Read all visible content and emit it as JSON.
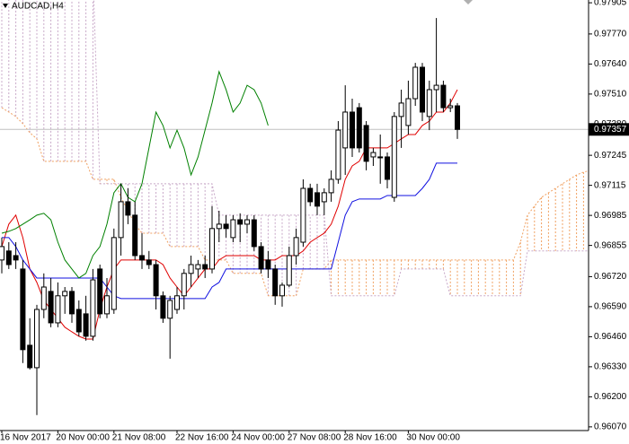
{
  "chart_data": {
    "type": "candlestick",
    "title": "AUDCAD,H4",
    "current_price": 0.97357,
    "categories": [
      "16 Nov 2017",
      null,
      null,
      null,
      null,
      null,
      null,
      null,
      "20 Nov 00:00",
      null,
      null,
      null,
      null,
      null,
      null,
      null,
      "21 Nov 08:00",
      null,
      null,
      null,
      null,
      null,
      null,
      null,
      null,
      "22 Nov 16:00",
      null,
      null,
      null,
      null,
      null,
      null,
      null,
      "24 Nov 00:00",
      null,
      null,
      null,
      null,
      null,
      null,
      null,
      "27 Nov 08:00",
      null,
      null,
      null,
      null,
      null,
      null,
      null,
      "28 Nov 16:00",
      null,
      null,
      null,
      null,
      null,
      null,
      null,
      null,
      "30 Nov 00:00",
      null,
      null,
      null,
      null,
      null,
      null,
      null
    ],
    "open": [
      0.96792,
      0.96831,
      0.96811,
      0.96753,
      0.96423,
      0.96326,
      0.96578,
      0.96656,
      0.9652,
      0.96637,
      0.96656,
      0.96578,
      0.96559,
      0.96462,
      0.96753,
      0.96559,
      0.96578,
      0.96889,
      0.97044,
      0.96986,
      0.96811,
      0.96792,
      0.96772,
      0.96637,
      0.9654,
      0.96578,
      0.96637,
      0.96734,
      0.96753,
      0.96772,
      0.96753,
      0.96928,
      0.96947,
      0.96889,
      0.96966,
      0.96947,
      0.96966,
      0.9685,
      0.96792,
      0.96753,
      0.96637,
      0.96683,
      0.96811,
      0.96869,
      0.97102,
      0.97083,
      0.97044,
      0.97083,
      0.97141,
      0.97277,
      0.97432,
      0.97451,
      0.97374,
      0.97238,
      0.97238,
      0.97238,
      0.97063,
      0.97413,
      0.97374,
      0.9749,
      0.97626,
      0.97413,
      0.97529,
      0.97548,
      0.97451,
      0.97459
    ],
    "high": [
      0.96889,
      0.96869,
      0.96869,
      0.96792,
      0.9654,
      0.96598,
      0.96734,
      0.96714,
      0.96695,
      0.96675,
      0.96675,
      0.96617,
      0.96637,
      0.96753,
      0.96772,
      0.96714,
      0.96928,
      0.97122,
      0.97102,
      0.97044,
      0.96908,
      0.96831,
      0.96792,
      0.96656,
      0.96637,
      0.96675,
      0.96753,
      0.96811,
      0.96792,
      0.96811,
      0.97025,
      0.97005,
      0.96986,
      0.96986,
      0.96994,
      0.96986,
      0.96986,
      0.96869,
      0.96831,
      0.96772,
      0.96695,
      0.9685,
      0.96928,
      0.97141,
      0.97122,
      0.97122,
      0.97102,
      0.9718,
      0.97393,
      0.97548,
      0.9749,
      0.97471,
      0.97393,
      0.97277,
      0.97335,
      0.97257,
      0.97432,
      0.97529,
      0.97568,
      0.97645,
      0.97645,
      0.97568,
      0.97839,
      0.97568,
      0.9749,
      0.97471
    ],
    "low": [
      0.96734,
      0.96753,
      0.96753,
      0.96346,
      0.96318,
      0.96121,
      0.9654,
      0.96501,
      0.96501,
      0.96559,
      0.9652,
      0.96462,
      0.96443,
      0.96443,
      0.9654,
      0.9654,
      0.96559,
      0.96811,
      0.96947,
      0.96792,
      0.96753,
      0.96753,
      0.96578,
      0.9652,
      0.96365,
      0.96559,
      0.96578,
      0.96675,
      0.96714,
      0.96714,
      0.96734,
      0.96869,
      0.96889,
      0.96869,
      0.96869,
      0.96908,
      0.96831,
      0.96734,
      0.96714,
      0.96598,
      0.9659,
      0.96675,
      0.96772,
      0.9685,
      0.97025,
      0.96986,
      0.96986,
      0.97044,
      0.97122,
      0.9716,
      0.97238,
      0.97257,
      0.9718,
      0.97199,
      0.97122,
      0.97102,
      0.97044,
      0.97277,
      0.97335,
      0.97459,
      0.97393,
      0.97354,
      0.97432,
      0.97432,
      0.97432,
      0.97316
    ],
    "close": [
      0.9685,
      0.96772,
      0.96792,
      0.96404,
      0.96326,
      0.96578,
      0.96675,
      0.9652,
      0.96637,
      0.96656,
      0.96559,
      0.96481,
      0.96462,
      0.96706,
      0.96559,
      0.96637,
      0.96889,
      0.97044,
      0.96986,
      0.96811,
      0.96792,
      0.96772,
      0.96637,
      0.9654,
      0.96617,
      0.96637,
      0.96734,
      0.96772,
      0.96772,
      0.96753,
      0.96928,
      0.96947,
      0.96928,
      0.96966,
      0.96947,
      0.96966,
      0.9685,
      0.96753,
      0.96753,
      0.96637,
      0.96683,
      0.96811,
      0.96889,
      0.97102,
      0.97044,
      0.97025,
      0.97083,
      0.97141,
      0.97354,
      0.97432,
      0.97277,
      0.97277,
      0.97219,
      0.97257,
      0.97238,
      0.97141,
      0.97413,
      0.97471,
      0.9749,
      0.97626,
      0.97432,
      0.97529,
      0.97548,
      0.97451,
      0.97459,
      0.97357
    ],
    "up_color": "#ffffff",
    "down_color": "#000000",
    "lines": [
      {
        "color": "#e00000",
        "values": [
          0.9685,
          0.96947,
          0.96986,
          0.96889,
          0.96753,
          0.96695,
          0.96617,
          0.96578,
          0.9654,
          0.96501,
          0.96481,
          0.96462,
          0.9645,
          0.9645,
          0.96578,
          0.96675,
          0.96753,
          0.96792,
          0.96792,
          0.96792,
          0.96792,
          0.96792,
          0.96792,
          0.96772,
          0.96714,
          0.96675,
          0.96637,
          0.96675,
          0.96714,
          0.96753,
          0.96753,
          0.96792,
          0.96811,
          0.96811,
          0.96811,
          0.96811,
          0.96811,
          0.96792,
          0.96792,
          0.96792,
          0.96811,
          0.96811,
          0.96811,
          0.96831,
          0.96869,
          0.96889,
          0.96908,
          0.96947,
          0.97025,
          0.97141,
          0.97199,
          0.97219,
          0.97277,
          0.97277,
          0.97277,
          0.97277,
          0.97296,
          0.97316,
          0.97335,
          0.97335,
          0.97374,
          0.97393,
          0.97432,
          0.97432,
          0.97471,
          0.97529
        ]
      },
      {
        "color": "#1010e0",
        "values": [
          0.96889,
          0.96889,
          0.9685,
          0.96792,
          0.96753,
          0.96714,
          0.96714,
          0.96714,
          0.96714,
          0.96714,
          0.96714,
          0.96714,
          0.96714,
          0.96714,
          0.96714,
          0.96675,
          0.96637,
          0.96625,
          0.96625,
          0.96625,
          0.96625,
          0.96625,
          0.96625,
          0.96625,
          0.96625,
          0.96625,
          0.96625,
          0.96625,
          0.96625,
          0.96625,
          0.96675,
          0.96695,
          0.96753,
          0.96753,
          0.96753,
          0.96753,
          0.96753,
          0.96753,
          0.96753,
          0.96753,
          0.96753,
          0.96753,
          0.96753,
          0.96753,
          0.96753,
          0.96753,
          0.96753,
          0.96753,
          0.96869,
          0.96986,
          0.97044,
          0.97056,
          0.97056,
          0.97056,
          0.97056,
          0.97071,
          0.97071,
          0.97071,
          0.97071,
          0.97071,
          0.97102,
          0.97141,
          0.97211,
          0.97211,
          0.97211,
          0.97211
        ]
      },
      {
        "color": "#008000",
        "values": [
          0.96908,
          0.96916,
          0.96928,
          0.96947,
          0.96966,
          0.96986,
          0.96994,
          0.96966,
          0.96869,
          0.96792,
          0.96753,
          0.96714,
          0.96734,
          0.96811,
          0.9685,
          0.96947,
          0.97083,
          0.97122,
          0.97063,
          0.97044,
          0.97122,
          0.97277,
          0.97432,
          0.97374,
          0.97277,
          0.97354,
          0.97277,
          0.9716,
          0.97238,
          0.97354,
          0.97471,
          0.97607,
          0.97529,
          0.97432,
          0.97471,
          0.97548,
          0.97529,
          0.97471,
          0.97374
        ]
      }
    ],
    "cloud": {
      "bull_color": "#f0a060",
      "bear_color": "#c8a8c8",
      "span_a": [
        0.97451,
        0.97432,
        0.97413,
        0.97382,
        0.97343,
        0.97316,
        0.97219,
        0.97219,
        0.97219,
        0.97219,
        0.97219,
        0.97219,
        0.97219,
        0.97141,
        0.97141,
        0.97141,
        0.97141,
        0.97063,
        0.97005,
        0.96947,
        0.96908,
        0.96908,
        0.96908,
        0.96908,
        0.9685,
        0.9685,
        0.9685,
        0.9685,
        0.9685,
        0.96792,
        0.96792,
        0.96792,
        0.96792,
        0.96734,
        0.96734,
        0.96734,
        0.96734,
        0.96734,
        0.96637,
        0.96637,
        0.96637,
        0.96637,
        0.96637,
        0.96753,
        0.96753,
        0.96753,
        0.96753,
        0.96792,
        0.96792,
        0.96792,
        0.96792,
        0.96792,
        0.96792,
        0.96792,
        0.96792,
        0.96792,
        0.96792,
        0.96792,
        0.96792,
        0.96792,
        0.96792,
        0.96792,
        0.96792,
        0.96792,
        0.96792,
        0.96792,
        0.96792,
        0.96792,
        0.96792,
        0.96792,
        0.96792,
        0.96792,
        0.96792,
        0.96792,
        0.96869,
        0.96986,
        0.97025,
        0.97063,
        0.97083,
        0.97102,
        0.97122,
        0.97141,
        0.9716,
        0.97172,
        0.9718
      ],
      "span_b": [
        0.98033,
        0.98033,
        0.98033,
        0.98033,
        0.98033,
        0.98033,
        0.98033,
        0.98033,
        0.98033,
        0.98033,
        0.98033,
        0.98033,
        0.98033,
        0.98033,
        0.97122,
        0.97122,
        0.97122,
        0.97122,
        0.97122,
        0.97122,
        0.97122,
        0.97122,
        0.97122,
        0.97122,
        0.97122,
        0.97122,
        0.97122,
        0.97122,
        0.97122,
        0.97122,
        0.97122,
        0.96986,
        0.96986,
        0.96986,
        0.96986,
        0.96986,
        0.96986,
        0.96986,
        0.96986,
        0.96986,
        0.96986,
        0.96986,
        0.96986,
        0.96986,
        0.96986,
        0.96986,
        0.96986,
        0.96637,
        0.96637,
        0.96637,
        0.96637,
        0.96637,
        0.96637,
        0.96637,
        0.96637,
        0.96637,
        0.96637,
        0.96753,
        0.96753,
        0.96753,
        0.96753,
        0.96753,
        0.96753,
        0.96753,
        0.96637,
        0.96637,
        0.96637,
        0.96637,
        0.96637,
        0.96637,
        0.96637,
        0.96637,
        0.96637,
        0.96637,
        0.96637,
        0.96831,
        0.96831,
        0.96831,
        0.96831,
        0.96831,
        0.96831,
        0.96831,
        0.96831,
        0.96831,
        0.96831
      ]
    },
    "ylim": [
      0.96054,
      0.97917
    ],
    "yticks": [
      0.97905,
      {
        "value": 0.9777,
        "label": "0.97770"
      },
      {
        "value": 0.9764,
        "label": "0.97640"
      },
      {
        "value": 0.9751,
        "label": "0.97510"
      },
      {
        "value": 0.9738,
        "label": "0.97380"
      },
      0.97245,
      0.97115,
      0.96985,
      0.96855,
      {
        "value": 0.9672,
        "label": "0.96720"
      },
      {
        "value": 0.9659,
        "label": "0.96590"
      },
      {
        "value": 0.9646,
        "label": "0.96460"
      },
      {
        "value": 0.9633,
        "label": "0.96330"
      },
      {
        "value": 0.962,
        "label": "0.96200"
      },
      {
        "value": 0.9607,
        "label": "0.96070"
      }
    ]
  }
}
